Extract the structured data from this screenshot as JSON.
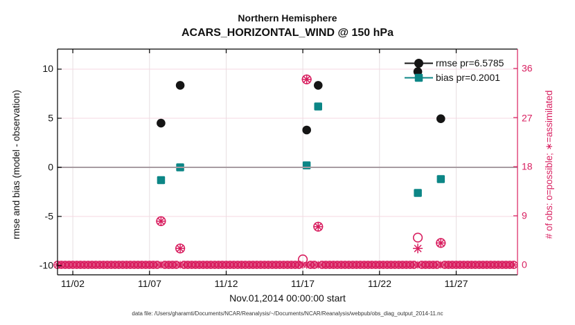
{
  "title": {
    "line1": "Northern Hemisphere",
    "line2": "ACARS_HORIZONTAL_WIND @ 150 hPa"
  },
  "axes": {
    "left": {
      "label": "rmse and bias (model - observation)",
      "ticks": [
        10,
        5,
        0,
        -5,
        -10
      ]
    },
    "right": {
      "label": "# of obs: o=possible; ∗=assimilated",
      "ticks": [
        36,
        27,
        18,
        9,
        0
      ]
    },
    "x": {
      "label": "Nov.01,2014 00:00:00 start",
      "tick_labels": [
        "11/02",
        "11/07",
        "11/12",
        "11/17",
        "11/22",
        "11/27"
      ],
      "tick_days": [
        2,
        7,
        12,
        17,
        22,
        27
      ]
    }
  },
  "legend": {
    "items": [
      {
        "label": "rmse pr=6.5785",
        "marker": "filled-circle",
        "color": "#151515"
      },
      {
        "label": "bias pr=0.2001",
        "marker": "filled-square",
        "color": "#0c8686"
      }
    ]
  },
  "caption": "data file: /Users/gharamti/Documents/NCAR/Reanalysis/~/Documents/NCAR/Reanalysis/webpub/obs_diag_output_2014-11.nc",
  "colors": {
    "rmse": "#151515",
    "bias": "#0c8686",
    "obs_pink": "#d81e5f",
    "grid_horizontal": "#f6d7e1",
    "grid_vertical": "#e7dee1",
    "zero_line": "#a79ba1",
    "spine": "#000000"
  },
  "chart_data": {
    "type": "scatter",
    "x_unit": "day of November 2014",
    "x_domain": [
      1,
      31
    ],
    "left_axis_ticks": [
      10,
      5,
      0,
      -5,
      -10
    ],
    "right_axis_ticks": [
      36,
      27,
      18,
      9,
      0
    ],
    "grid": true,
    "legend_position": "top-right-inside-no-box",
    "series": [
      {
        "name": "rmse",
        "axis": "left",
        "marker": "filled-circle",
        "points": [
          [
            7.75,
            4.5
          ],
          [
            9.0,
            8.35
          ],
          [
            17.25,
            3.8
          ],
          [
            18.0,
            8.35
          ],
          [
            24.5,
            9.75
          ],
          [
            26.0,
            4.95
          ]
        ]
      },
      {
        "name": "bias",
        "axis": "left",
        "marker": "filled-square",
        "points": [
          [
            7.75,
            -1.3
          ],
          [
            9.0,
            0.0
          ],
          [
            17.25,
            0.2
          ],
          [
            18.0,
            6.2
          ],
          [
            24.5,
            -2.6
          ],
          [
            26.0,
            -1.2
          ]
        ]
      },
      {
        "name": "obs_possible",
        "axis": "right",
        "marker": "open-circle",
        "points": [
          [
            7.75,
            8
          ],
          [
            9.0,
            3
          ],
          [
            17.0,
            1
          ],
          [
            17.25,
            34
          ],
          [
            18.0,
            7
          ],
          [
            24.5,
            5
          ],
          [
            26.0,
            4
          ]
        ]
      },
      {
        "name": "obs_assimilated",
        "axis": "right",
        "marker": "asterisk",
        "points": [
          [
            7.75,
            8
          ],
          [
            9.0,
            3
          ],
          [
            17.25,
            34
          ],
          [
            18.0,
            7
          ],
          [
            24.5,
            3
          ],
          [
            26.0,
            4
          ]
        ]
      }
    ],
    "obs_baseline_band": {
      "description": "overlapping o and * markers at 0 obs for every 6-hour step",
      "days_start": 1.0,
      "days_end": 30.75,
      "step_days": 0.25,
      "value": 0,
      "circle_omitted_days": [
        7.75,
        9.0,
        17.0,
        17.25,
        18.0,
        24.5,
        26.0
      ]
    }
  }
}
